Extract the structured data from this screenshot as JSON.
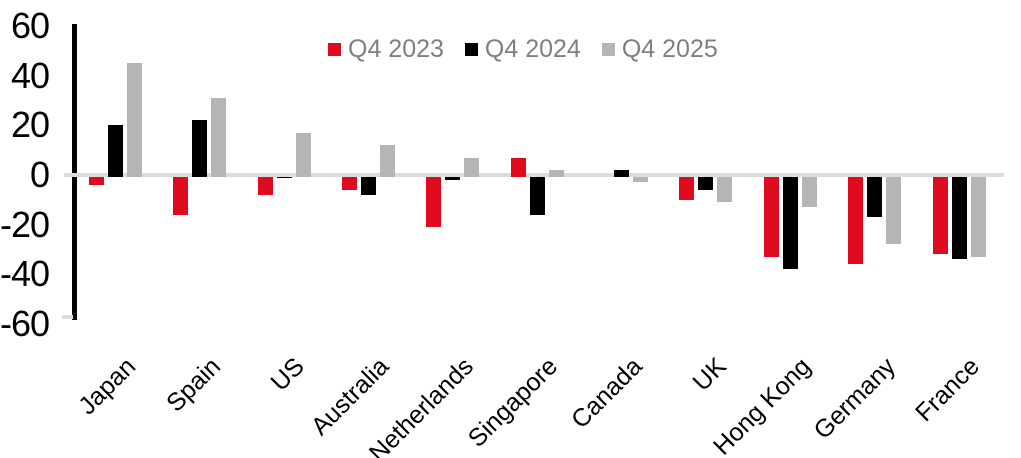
{
  "chart_data": {
    "type": "bar",
    "title": "",
    "xlabel": "",
    "ylabel": "",
    "ylim": [
      -60,
      60
    ],
    "yticks": [
      60,
      40,
      20,
      0,
      -20,
      -40,
      -60
    ],
    "grid": "zero-line-only",
    "legend_position": "top-center",
    "categories": [
      "Japan",
      "Spain",
      "US",
      "Australia",
      "Netherlands",
      "Singapore",
      "Canada",
      "UK",
      "Hong Kong",
      "Germany",
      "France"
    ],
    "series": [
      {
        "name": "Q4 2023",
        "color": "#e00a1e",
        "values": [
          -4,
          -16,
          -8,
          -6,
          -21,
          7,
          0,
          -10,
          -33,
          -36,
          -32
        ]
      },
      {
        "name": "Q4 2024",
        "color": "#000000",
        "values": [
          20,
          22,
          -1,
          -8,
          -2,
          -16,
          2,
          -6,
          -38,
          -17,
          -34
        ]
      },
      {
        "name": "Q4 2025",
        "color": "#b5b5b5",
        "values": [
          45,
          31,
          17,
          12,
          7,
          2,
          -3,
          -11,
          -13,
          -28,
          -33
        ]
      }
    ],
    "colors": {
      "zero_line": "#dcdcdc",
      "axis_line": "#000000",
      "tick_text": "#000000",
      "legend_text": "#808080"
    }
  }
}
